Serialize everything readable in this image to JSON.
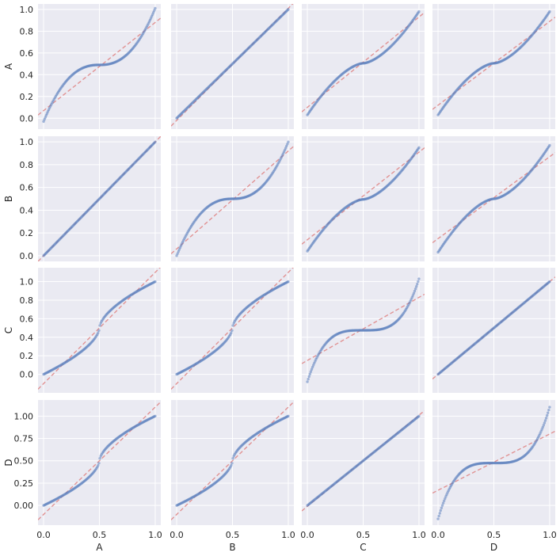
{
  "chart_data": {
    "type": "scatter",
    "variables": [
      "A",
      "B",
      "C",
      "D"
    ],
    "x_ticks": [
      "0.0",
      "0.5",
      "1.0"
    ],
    "y_ticks_default": [
      "0.0",
      "0.2",
      "0.4",
      "0.6",
      "0.8",
      "1.0"
    ],
    "y_ticks_row_D": [
      "0.00",
      "0.25",
      "0.50",
      "0.75",
      "1.00"
    ],
    "xlim": [
      -0.05,
      1.05
    ],
    "ylim_rows": [
      [
        -0.1,
        1.05
      ],
      [
        -0.05,
        1.05
      ],
      [
        -0.2,
        1.15
      ],
      [
        -0.22,
        1.18
      ]
    ],
    "grid": true,
    "colors": {
      "points": "#5b7fbd",
      "reference_line": "#e08a8a",
      "panel_background": "#eaeaf2"
    },
    "panels": [
      {
        "row": "A",
        "col": "A",
        "shape": "s",
        "y0": -0.03,
        "y1": 1.01,
        "ref": [
          0.07,
          0.88
        ]
      },
      {
        "row": "A",
        "col": "B",
        "shape": "lin",
        "y0": 0.0,
        "y1": 1.0,
        "ref": [
          -0.02,
          1.01
        ]
      },
      {
        "row": "A",
        "col": "C",
        "shape": "s_mild",
        "y0": 0.03,
        "y1": 0.98,
        "ref": [
          0.1,
          0.93
        ]
      },
      {
        "row": "A",
        "col": "D",
        "shape": "s_mild",
        "y0": 0.03,
        "y1": 0.98,
        "ref": [
          0.12,
          0.89
        ]
      },
      {
        "row": "B",
        "col": "A",
        "shape": "lin",
        "y0": 0.0,
        "y1": 1.0,
        "ref": [
          0.0,
          1.0
        ]
      },
      {
        "row": "B",
        "col": "B",
        "shape": "s",
        "y0": 0.0,
        "y1": 1.0,
        "ref": [
          0.06,
          0.92
        ]
      },
      {
        "row": "B",
        "col": "C",
        "shape": "s_mild",
        "y0": 0.04,
        "y1": 0.95,
        "ref": [
          0.14,
          0.91
        ]
      },
      {
        "row": "B",
        "col": "D",
        "shape": "s_mild",
        "y0": 0.03,
        "y1": 0.97,
        "ref": [
          0.15,
          0.87
        ]
      },
      {
        "row": "C",
        "col": "A",
        "shape": "inv",
        "y0": 0.0,
        "y1": 1.0,
        "ref": [
          -0.1,
          1.1
        ]
      },
      {
        "row": "C",
        "col": "B",
        "shape": "inv",
        "y0": 0.0,
        "y1": 1.0,
        "ref": [
          -0.1,
          1.1
        ]
      },
      {
        "row": "C",
        "col": "C",
        "shape": "s_strong",
        "y0": -0.08,
        "y1": 1.03,
        "ref": [
          0.15,
          0.83
        ]
      },
      {
        "row": "C",
        "col": "D",
        "shape": "lin",
        "y0": 0.0,
        "y1": 1.0,
        "ref": [
          0.0,
          1.0
        ]
      },
      {
        "row": "D",
        "col": "A",
        "shape": "inv",
        "y0": 0.0,
        "y1": 1.0,
        "ref": [
          -0.1,
          1.1
        ]
      },
      {
        "row": "D",
        "col": "B",
        "shape": "inv",
        "y0": 0.0,
        "y1": 1.0,
        "ref": [
          -0.1,
          1.1
        ]
      },
      {
        "row": "D",
        "col": "C",
        "shape": "lin",
        "y0": 0.0,
        "y1": 1.0,
        "ref": [
          -0.01,
          1.01
        ]
      },
      {
        "row": "D",
        "col": "D",
        "shape": "s_strong",
        "y0": -0.15,
        "y1": 1.1,
        "ref": [
          0.17,
          0.8
        ]
      }
    ]
  }
}
